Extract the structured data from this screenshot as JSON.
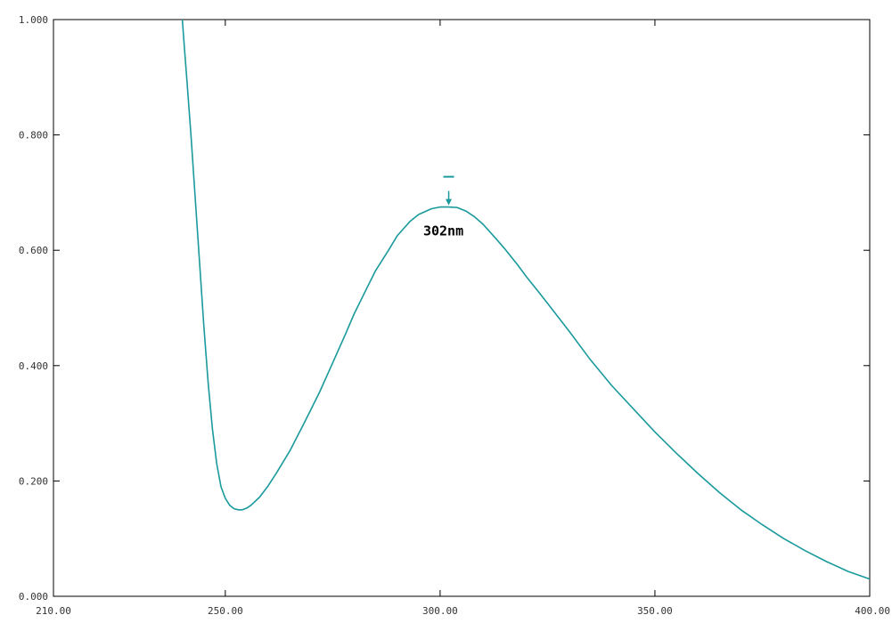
{
  "chart_data": {
    "type": "line",
    "title": "",
    "xlabel": "",
    "ylabel": "",
    "xlim": [
      210,
      400
    ],
    "ylim": [
      0,
      1
    ],
    "x_ticks": [
      "210.00",
      "250.00",
      "300.00",
      "350.00",
      "400.00"
    ],
    "x_tick_values": [
      210,
      250,
      300,
      350,
      400
    ],
    "y_ticks": [
      "0.000",
      "0.200",
      "0.400",
      "0.600",
      "0.800",
      "1.000"
    ],
    "y_tick_values": [
      0,
      0.2,
      0.4,
      0.6,
      0.8,
      1.0
    ],
    "grid": false,
    "series": [
      {
        "color": "#1a9a9c",
        "x": [
          240,
          240.5,
          241,
          242,
          243,
          244,
          245,
          246,
          247,
          248,
          249,
          250,
          251,
          252,
          253,
          254,
          255,
          256,
          258,
          260,
          262,
          265,
          268,
          270,
          272,
          275,
          278,
          280,
          283,
          285,
          288,
          290,
          293,
          295,
          298,
          300,
          302,
          304,
          306,
          308,
          310,
          313,
          315,
          318,
          320,
          323,
          325,
          330,
          335,
          340,
          345,
          350,
          355,
          360,
          365,
          370,
          375,
          380,
          385,
          390,
          395,
          400
        ],
        "y": [
          1.0,
          0.95,
          0.9,
          0.8,
          0.69,
          0.58,
          0.47,
          0.37,
          0.29,
          0.23,
          0.19,
          0.17,
          0.158,
          0.152,
          0.15,
          0.15,
          0.153,
          0.158,
          0.172,
          0.192,
          0.215,
          0.252,
          0.295,
          0.325,
          0.355,
          0.405,
          0.455,
          0.49,
          0.535,
          0.565,
          0.6,
          0.625,
          0.65,
          0.662,
          0.672,
          0.675,
          0.675,
          0.674,
          0.668,
          0.658,
          0.645,
          0.62,
          0.603,
          0.575,
          0.555,
          0.527,
          0.508,
          0.46,
          0.41,
          0.365,
          0.325,
          0.285,
          0.248,
          0.213,
          0.18,
          0.15,
          0.124,
          0.1,
          0.079,
          0.06,
          0.043,
          0.03
        ]
      }
    ],
    "annotations": [
      {
        "text": "302nm",
        "x": 302,
        "y": 0.675
      }
    ]
  }
}
